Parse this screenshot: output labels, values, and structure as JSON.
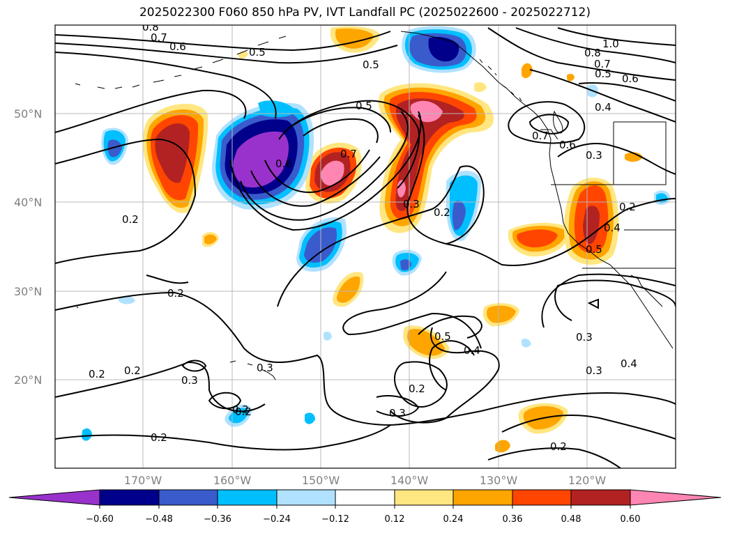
{
  "title": "2025022300 F060 850 hPa PV, IVT Landfall PC (2025022600 - 2025022712)",
  "lat_labels": [
    "50°N",
    "40°N",
    "30°N",
    "20°N"
  ],
  "lon_labels": [
    "170°W",
    "160°W",
    "150°W",
    "140°W",
    "130°W",
    "120°W"
  ],
  "colorbar": {
    "ticks": [
      "−0.60",
      "−0.48",
      "−0.36",
      "−0.24",
      "−0.12",
      "0.12",
      "0.24",
      "0.36",
      "0.48",
      "0.60"
    ],
    "colors": [
      "#9932cc",
      "#00008b",
      "#3a5bcc",
      "#00bfff",
      "#b0e2ff",
      "#ffffff",
      "#ffe680",
      "#ffa500",
      "#ff4500",
      "#b22222",
      "#ff85b3"
    ]
  },
  "contour_labels": [
    "0.8",
    "0.7",
    "0.6",
    "0.5",
    "0.5",
    "0.5",
    "1.0",
    "0.8",
    "0.7",
    "0.5",
    "0.6",
    "0.4",
    "0.7",
    "0.6",
    "0.3",
    "0.6",
    "0.7",
    "0.3",
    "0.2",
    "0.2",
    "0.4",
    "0.5",
    "0.2",
    "0.2",
    "0.2",
    "0.2",
    "0.3",
    "0.2",
    "0.2",
    "0.5",
    "0.4",
    "0.2",
    "0.3",
    "0.3",
    "0.4",
    "0.3",
    "0.2",
    "0.2",
    "0.3"
  ]
}
